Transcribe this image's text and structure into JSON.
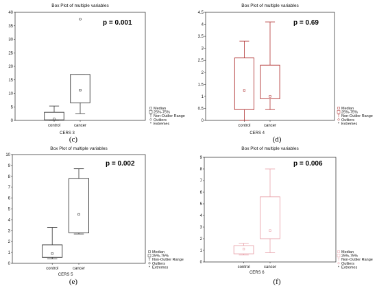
{
  "chart_data": [
    {
      "type": "box",
      "title": "Box Plot of multiple variables",
      "xlabel": "CERS 3",
      "caption": "(c)",
      "pvalue_label": "p = 0.001",
      "color": "#333333",
      "categories": [
        "control",
        "cancer"
      ],
      "ylim": [
        0,
        40
      ],
      "yticks": [
        0,
        5,
        10,
        15,
        20,
        25,
        30,
        35,
        40
      ],
      "boxes": [
        {
          "category": "control",
          "whisker_low": 0,
          "q1": 0.2,
          "median": 0.5,
          "q3": 3,
          "whisker_high": 5.3,
          "outliers": []
        },
        {
          "category": "cancer",
          "whisker_low": 2.5,
          "q1": 6.5,
          "median": 11.2,
          "q3": 17,
          "whisker_high": 17,
          "outliers": [
            37.5
          ]
        }
      ],
      "legend": [
        "Median",
        "25%-75%",
        "Non-Outlier Range",
        "Outliers",
        "Extremes"
      ]
    },
    {
      "type": "box",
      "title": "Box Plot of multiple variables",
      "xlabel": "CERS 4",
      "caption": "(d)",
      "pvalue_label": "p = 0.69",
      "color": "#b03030",
      "categories": [
        "control",
        "cancer"
      ],
      "ylim": [
        0,
        4.5
      ],
      "yticks": [
        0,
        0.5,
        1,
        1.5,
        2,
        2.5,
        3,
        3.5,
        4,
        4.5
      ],
      "boxes": [
        {
          "category": "control",
          "whisker_low": 0,
          "q1": 0.45,
          "median": 1.25,
          "q3": 2.6,
          "whisker_high": 3.3,
          "outliers": []
        },
        {
          "category": "cancer",
          "whisker_low": 0.45,
          "q1": 0.9,
          "median": 1,
          "q3": 2.3,
          "whisker_high": 4.1,
          "outliers": []
        }
      ],
      "legend": [
        "Median",
        "25%-75%",
        "Non-Outlier Range",
        "Outliers",
        "Extremes"
      ]
    },
    {
      "type": "box",
      "title": "Box Plot of multiple variables",
      "xlabel": "CERS 5",
      "caption": "(e)",
      "pvalue_label": "p = 0.002",
      "color": "#333333",
      "categories": [
        "control",
        "cancer"
      ],
      "ylim": [
        0,
        10
      ],
      "yticks": [
        0,
        1,
        2,
        3,
        4,
        5,
        6,
        7,
        8,
        9,
        10
      ],
      "boxes": [
        {
          "category": "control",
          "whisker_low": 0.4,
          "q1": 0.55,
          "median": 0.9,
          "q3": 1.7,
          "whisker_high": 3.3,
          "outliers": []
        },
        {
          "category": "cancer",
          "whisker_low": 2.7,
          "q1": 2.8,
          "median": 4.5,
          "q3": 7.8,
          "whisker_high": 8.7,
          "outliers": []
        }
      ],
      "legend": [
        "Median",
        "25%-75%",
        "Non-Outlier Range",
        "Outliers",
        "Extremes"
      ]
    },
    {
      "type": "box",
      "title": "Box Plot of multiple variables",
      "xlabel": "CERS 6",
      "caption": "(f)",
      "pvalue_label": "p = 0.006",
      "color": "#e8a0a8",
      "categories": [
        "control",
        "cancer"
      ],
      "ylim": [
        0,
        9
      ],
      "yticks": [
        0,
        1,
        2,
        3,
        4,
        5,
        6,
        7,
        8,
        9
      ],
      "boxes": [
        {
          "category": "control",
          "whisker_low": 0.6,
          "q1": 0.7,
          "median": 1.1,
          "q3": 1.4,
          "whisker_high": 1.6,
          "outliers": []
        },
        {
          "category": "cancer",
          "whisker_low": 0.8,
          "q1": 2,
          "median": 2.7,
          "q3": 5.6,
          "whisker_high": 8,
          "outliers": []
        }
      ],
      "legend": [
        "Median",
        "25%-75%",
        "Non-Outlier Range",
        "Outliers",
        "Extremes"
      ]
    }
  ]
}
